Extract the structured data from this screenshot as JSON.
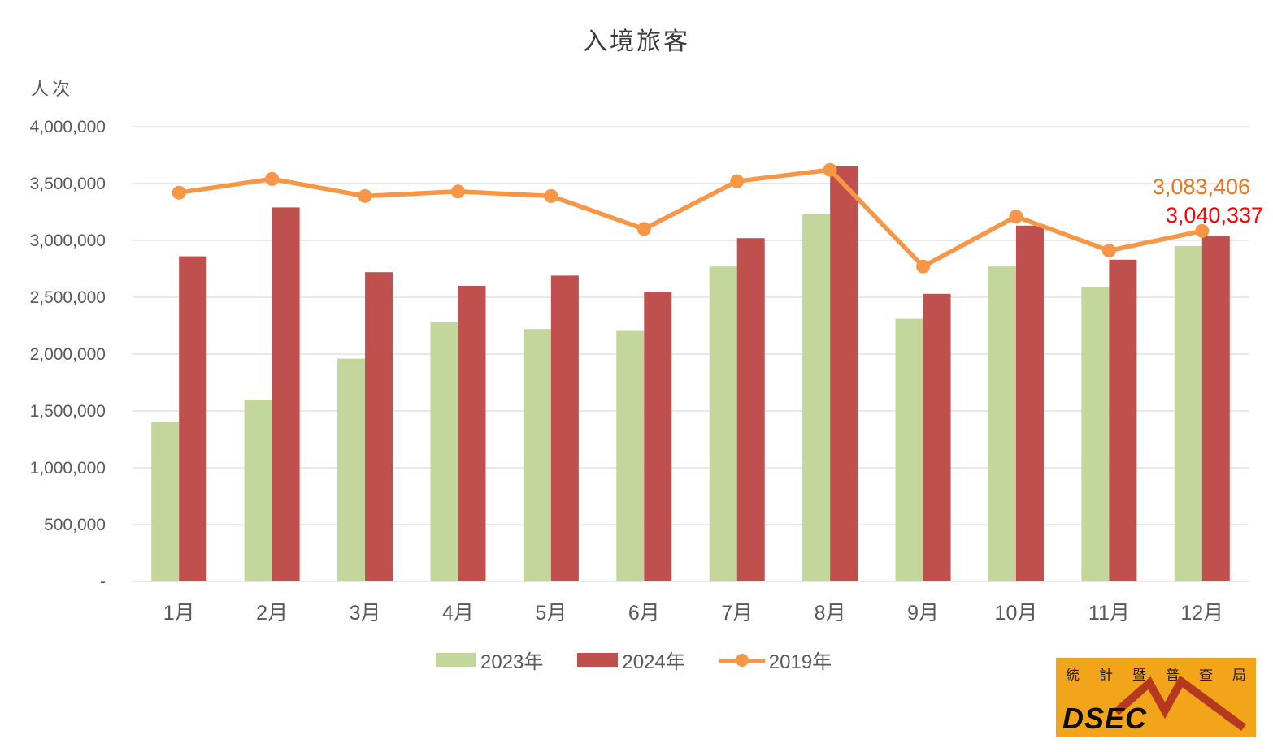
{
  "chart": {
    "title": "入境旅客",
    "y_unit": "人次"
  },
  "logo": {
    "characters": [
      "統",
      "計",
      "暨",
      "普",
      "查",
      "局"
    ],
    "acronym": "DSEC",
    "background_color": "#F2A41B",
    "zigzag_color": "#B5391F"
  },
  "chart_data": {
    "type": "bar",
    "title": "入境旅客",
    "ylabel": "人次",
    "xlabel": "",
    "categories": [
      "1月",
      "2月",
      "3月",
      "4月",
      "5月",
      "6月",
      "7月",
      "8月",
      "9月",
      "10月",
      "11月",
      "12月"
    ],
    "series": [
      {
        "name": "2023年",
        "type": "bar",
        "color": "#C3D69B",
        "values": [
          1400000,
          1600000,
          1960000,
          2280000,
          2220000,
          2210000,
          2770000,
          3230000,
          2310000,
          2770000,
          2590000,
          2950000
        ]
      },
      {
        "name": "2024年",
        "type": "bar",
        "color": "#C0504D",
        "values": [
          2860000,
          3290000,
          2720000,
          2600000,
          2690000,
          2550000,
          3020000,
          3650000,
          2530000,
          3130000,
          2830000,
          3040337
        ]
      },
      {
        "name": "2019年",
        "type": "line",
        "color": "#F79646",
        "values": [
          3420000,
          3540000,
          3390000,
          3430000,
          3390000,
          3100000,
          3520000,
          3620000,
          2770000,
          3210000,
          2910000,
          3083406
        ]
      }
    ],
    "ylim": [
      0,
      4000000
    ],
    "y_tick_labels": [
      "-",
      "500,000",
      "1,000,000",
      "1,500,000",
      "2,000,000",
      "2,500,000",
      "3,000,000",
      "3,500,000",
      "4,000,000"
    ],
    "grid": true,
    "legend_position": "bottom",
    "annotations": [
      {
        "text": "3,083,406",
        "series": "2019年",
        "category": "12月",
        "value": 3083406,
        "color": "#E87724"
      },
      {
        "text": "3,040,337",
        "series": "2024年",
        "category": "12月",
        "value": 3040337,
        "color": "#FF0000"
      }
    ],
    "style": {
      "gridline_color": "#D9D9D9",
      "axis_text_color": "#595959",
      "title_color": "#3b3b3b"
    }
  }
}
